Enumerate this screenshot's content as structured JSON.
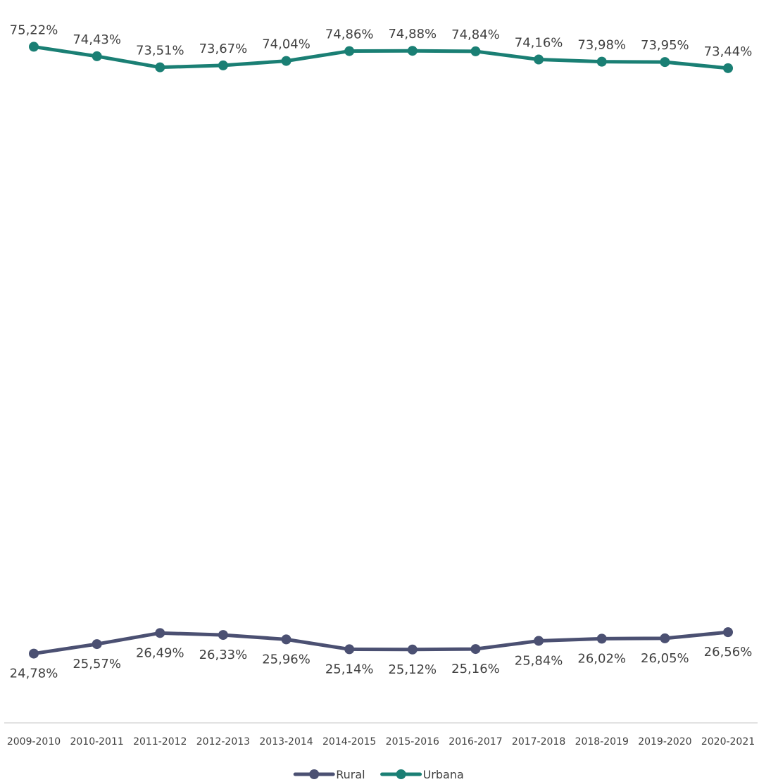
{
  "chart_data": {
    "type": "line",
    "categories": [
      "2009-2010",
      "2010-2011",
      "2011-2012",
      "2012-2013",
      "2013-2014",
      "2014-2015",
      "2015-2016",
      "2016-2017",
      "2017-2018",
      "2018-2019",
      "2019-2020",
      "2020-2021"
    ],
    "series": [
      {
        "name": "Rural",
        "color": "#4b5072",
        "values": [
          24.78,
          25.57,
          26.49,
          26.33,
          25.96,
          25.14,
          25.12,
          25.16,
          25.84,
          26.02,
          26.05,
          26.56
        ],
        "labels": [
          "24,78%",
          "25,57%",
          "26,49%",
          "26,33%",
          "25,96%",
          "25,14%",
          "25,12%",
          "25,16%",
          "25,84%",
          "26,02%",
          "26,05%",
          "26,56%"
        ],
        "label_position": "below"
      },
      {
        "name": "Urbana",
        "color": "#1a7f74",
        "values": [
          75.22,
          74.43,
          73.51,
          73.67,
          74.04,
          74.86,
          74.88,
          74.84,
          74.16,
          73.98,
          73.95,
          73.44
        ],
        "labels": [
          "75,22%",
          "74,43%",
          "73,51%",
          "73,67%",
          "74,04%",
          "74,86%",
          "74,88%",
          "74,84%",
          "74,16%",
          "73,98%",
          "73,95%",
          "73,44%"
        ],
        "label_position": "above"
      }
    ],
    "title": "",
    "xlabel": "",
    "ylabel": "",
    "ylim": [
      23,
      77
    ],
    "grid": false,
    "y_axis_visible": false,
    "data_labels": true,
    "legend_position": "bottom-center",
    "axis_color": "#d9d9d9"
  }
}
